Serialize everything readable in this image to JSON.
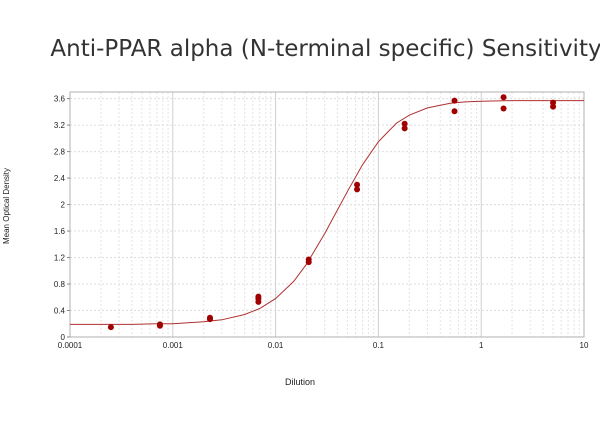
{
  "chart_data": {
    "type": "scatter",
    "title": "Anti-PPAR alpha (N-terminal specific) Sensitivity",
    "xlabel": "Dilution",
    "ylabel": "Mean Optical Density",
    "xscale": "log",
    "xlim": [
      0.0001,
      10
    ],
    "ylim": [
      0,
      3.7
    ],
    "xticks": [
      0.0001,
      0.001,
      0.01,
      0.1,
      1,
      10
    ],
    "xtick_labels": [
      "0.0001",
      "0.001",
      "0.01",
      "0.1",
      "1",
      "10"
    ],
    "yticks": [
      0,
      0.4,
      0.8,
      1.2,
      1.6,
      2,
      2.4,
      2.8,
      3.2,
      3.6
    ],
    "ytick_labels": [
      "0",
      "0.4",
      "0.8",
      "1.2",
      "1.6",
      "2",
      "2.4",
      "2.8",
      "3.2",
      "3.6"
    ],
    "grid": true,
    "series": [
      {
        "kind": "points",
        "color": "#a00000",
        "x": [
          0.00025,
          0.00075,
          0.00075,
          0.0023,
          0.0023,
          0.0068,
          0.0068,
          0.0068,
          0.021,
          0.021,
          0.062,
          0.062,
          0.18,
          0.18,
          0.55,
          0.55,
          1.65,
          1.65,
          5,
          5
        ],
        "y": [
          0.15,
          0.17,
          0.19,
          0.27,
          0.29,
          0.53,
          0.58,
          0.61,
          1.13,
          1.17,
          2.23,
          2.3,
          3.15,
          3.22,
          3.41,
          3.57,
          3.45,
          3.62,
          3.48,
          3.54
        ]
      },
      {
        "kind": "fit",
        "color": "#b03030",
        "x": [
          0.0001,
          0.0002,
          0.0004,
          0.0007,
          0.001,
          0.002,
          0.003,
          0.005,
          0.007,
          0.01,
          0.015,
          0.02,
          0.03,
          0.04,
          0.05,
          0.07,
          0.1,
          0.15,
          0.2,
          0.3,
          0.5,
          0.7,
          1,
          2,
          4,
          7,
          10
        ],
        "y": [
          0.19,
          0.19,
          0.19,
          0.2,
          0.2,
          0.23,
          0.26,
          0.34,
          0.43,
          0.58,
          0.84,
          1.1,
          1.56,
          1.92,
          2.2,
          2.6,
          2.95,
          3.23,
          3.35,
          3.46,
          3.53,
          3.55,
          3.56,
          3.57,
          3.57,
          3.57,
          3.57
        ]
      }
    ]
  }
}
